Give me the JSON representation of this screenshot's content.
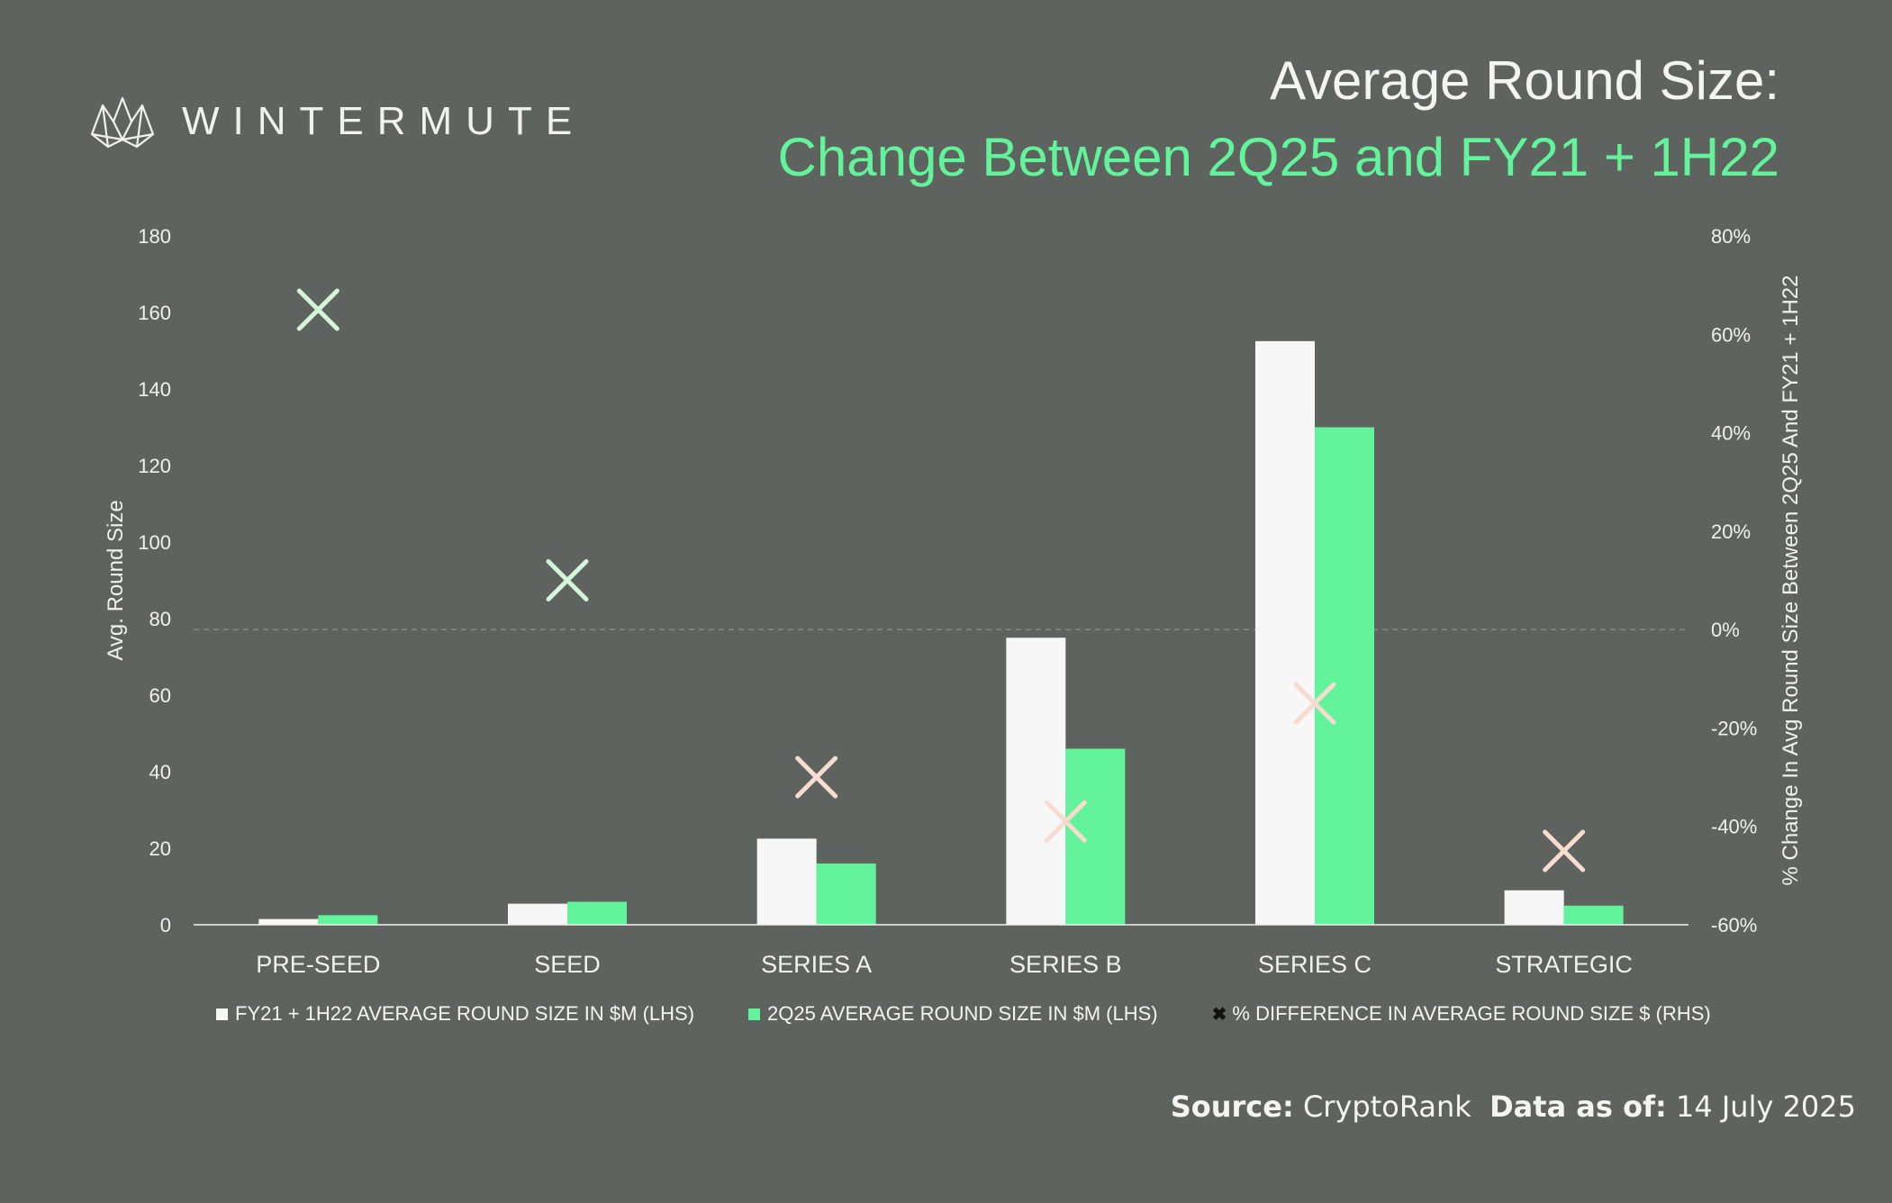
{
  "brand": {
    "name": "WINTERMUTE"
  },
  "header": {
    "title_line1": "Average Round Size:",
    "title_line2": "Change Between 2Q25 and FY21 + 1H22"
  },
  "colors": {
    "background": "#5e6360",
    "fy21_series": "#f7f7f7",
    "q25_series": "#63f49b",
    "positive_marker": "#d5f5d8",
    "negative_marker": "#f8dccf",
    "title_accent": "#63f49b"
  },
  "chart_data": {
    "type": "bar",
    "categories": [
      "PRE-SEED",
      "SEED",
      "SERIES A",
      "SERIES B",
      "SERIES C",
      "STRATEGIC"
    ],
    "series": [
      {
        "name": "FY21 + 1H22 AVERAGE ROUND SIZE IN $M (LHS)",
        "axis": "left",
        "values": [
          1.5,
          5.5,
          22.5,
          75,
          152.5,
          9
        ]
      },
      {
        "name": "2Q25 AVERAGE ROUND SIZE IN $M (LHS)",
        "axis": "left",
        "values": [
          2.5,
          6,
          16,
          46,
          130,
          5
        ]
      },
      {
        "name": "% DIFFERENCE IN AVERAGE ROUND SIZE $ (RHS)",
        "axis": "right",
        "marker": "x",
        "values": [
          65,
          10,
          -30,
          -39,
          -15,
          -45
        ]
      }
    ],
    "ylabel_left": "Avg. Round Size",
    "ylabel_right": "% Change In Avg Round Size Between 2Q25 And FY21 + 1H22",
    "ylim_left": [
      0,
      180
    ],
    "yticks_left": [
      "0",
      "20",
      "40",
      "60",
      "80",
      "100",
      "120",
      "140",
      "160",
      "180"
    ],
    "ylim_right": [
      -60,
      80
    ],
    "yticks_right": [
      "-60%",
      "-40%",
      "-20%",
      "0%",
      "20%",
      "40%",
      "60%",
      "80%"
    ],
    "zero_line": "dashed at 0%",
    "grid": false,
    "legend_position": "bottom"
  },
  "legend": {
    "fy21": "FY21 + 1H22 AVERAGE ROUND SIZE IN $M (LHS)",
    "q25": "2Q25 AVERAGE ROUND SIZE IN $M (LHS)",
    "pct": "% DIFFERENCE IN AVERAGE ROUND SIZE $ (RHS)"
  },
  "footer": {
    "source_label": "Source:",
    "source_value": "CryptoRank",
    "data_label": "Data as of:",
    "data_value": "14 July 2025"
  }
}
